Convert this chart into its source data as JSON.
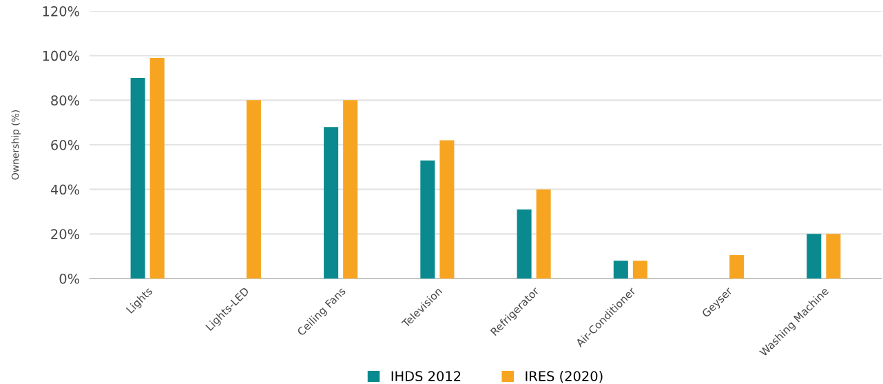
{
  "chart_data": {
    "type": "bar",
    "ylabel": "Ownership (%)",
    "categories": [
      "Lights",
      "Lights-LED",
      "Ceiling Fans",
      "Television",
      "Refrigerator",
      "Air-Conditioner",
      "Geyser",
      "Washing Machine"
    ],
    "series": [
      {
        "name": "IHDS 2012",
        "color": "#0a8a8e",
        "values": [
          90,
          null,
          68,
          53,
          31,
          8,
          null,
          20
        ]
      },
      {
        "name": "IRES (2020)",
        "color": "#f7a520",
        "values": [
          99,
          80,
          80,
          62,
          40,
          8,
          10.5,
          20
        ]
      }
    ],
    "ylim": [
      0,
      120
    ],
    "yticks": [
      {
        "value": 0,
        "label": "0%"
      },
      {
        "value": 20,
        "label": "20%"
      },
      {
        "value": 40,
        "label": "40%"
      },
      {
        "value": 60,
        "label": "60%"
      },
      {
        "value": 80,
        "label": "80%"
      },
      {
        "value": 100,
        "label": "100%"
      },
      {
        "value": 120,
        "label": "120%"
      }
    ],
    "grid": "y",
    "legend": "bottom"
  }
}
